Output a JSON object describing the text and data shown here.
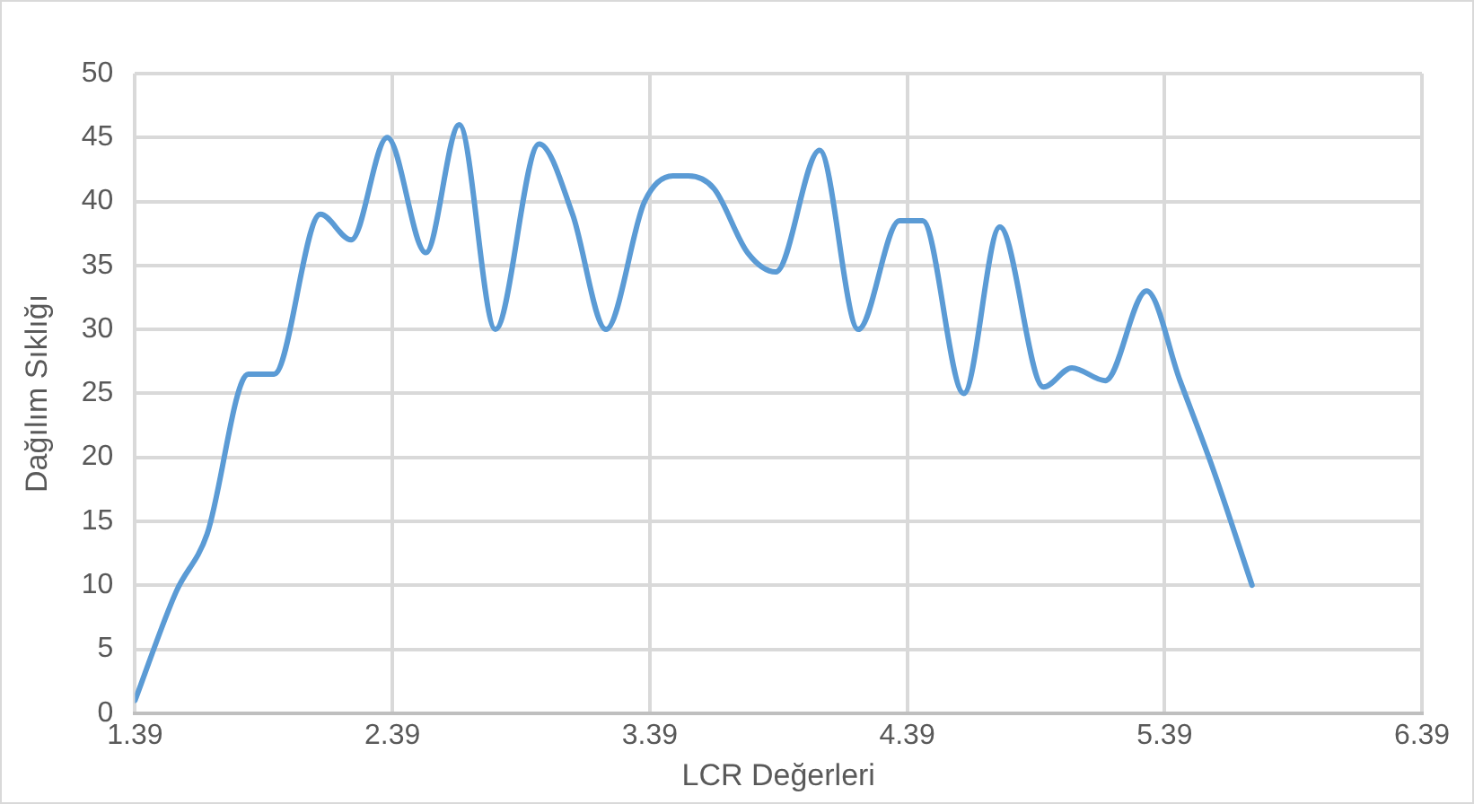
{
  "chart_data": {
    "type": "line",
    "xlabel": "LCR Değerleri",
    "ylabel": "Dağılım Sıklığı",
    "x": [
      1.39,
      1.55,
      1.67,
      1.83,
      1.93,
      2.11,
      2.23,
      2.37,
      2.52,
      2.65,
      2.79,
      2.96,
      3.09,
      3.22,
      3.37,
      3.48,
      3.54,
      3.64,
      3.77,
      3.88,
      4.05,
      4.2,
      4.36,
      4.45,
      4.61,
      4.75,
      4.92,
      5.03,
      5.16,
      5.32,
      5.45,
      5.58,
      5.73
    ],
    "series": [
      {
        "color": "#5b9bd5",
        "values": [
          1,
          9.5,
          14,
          26.5,
          26.5,
          39,
          37,
          45,
          36,
          46,
          30,
          44.5,
          39,
          30,
          40,
          42,
          42,
          41,
          36,
          34.5,
          44,
          30,
          38.5,
          38.5,
          25,
          38,
          25.5,
          27,
          26,
          33,
          26,
          19,
          10
        ]
      }
    ],
    "xlim": [
      1.39,
      6.39
    ],
    "xticks": [
      1.39,
      2.39,
      3.39,
      4.39,
      5.39,
      6.39
    ],
    "ylim": [
      0,
      50
    ],
    "yticks": [
      0,
      5,
      10,
      15,
      20,
      25,
      30,
      35,
      40,
      45,
      50
    ],
    "grid": true,
    "legend": false,
    "marker": "none",
    "line_style": "solid"
  }
}
